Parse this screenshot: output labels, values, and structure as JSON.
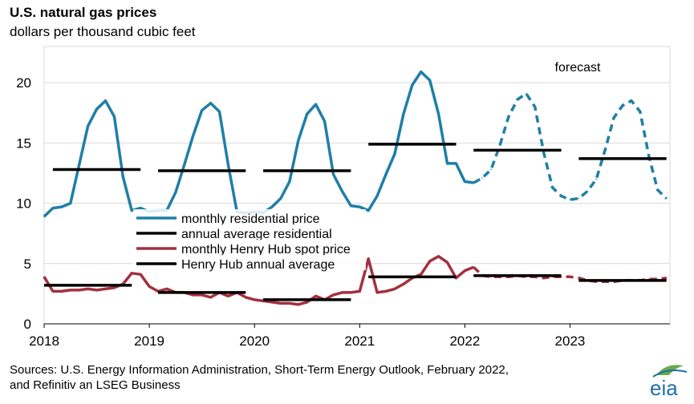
{
  "header": {
    "title": "U.S. natural gas prices",
    "subtitle": "dollars per thousand cubic feet"
  },
  "footer": {
    "source_line1": "Sources: U.S. Energy Information Administration, Short-Term Energy Outlook, February 2022,",
    "source_line2": "and Refinitiv an LSEG Business"
  },
  "logo": {
    "text": "eia",
    "icon": "eia-logo-icon"
  },
  "colors": {
    "residential": "#1f7fa6",
    "henry_hub": "#a3303f",
    "annual_average": "#000000",
    "grid": "#d9d9d9",
    "logo_blue": "#1f6fa8",
    "logo_green": "#6aa84f"
  },
  "chart_data": {
    "type": "line",
    "title": "U.S. natural gas prices",
    "ylabel": "dollars per thousand cubic feet",
    "ylim": [
      0,
      23
    ],
    "yticks": [
      0,
      5,
      10,
      15,
      20
    ],
    "xlim": [
      2018.0,
      2023.95
    ],
    "xticks": [
      {
        "x": 2018,
        "label": "2018"
      },
      {
        "x": 2019,
        "label": "2019"
      },
      {
        "x": 2020,
        "label": "2020"
      },
      {
        "x": 2021,
        "label": "2021"
      },
      {
        "x": 2022,
        "label": "2022"
      },
      {
        "x": 2023,
        "label": "2023"
      }
    ],
    "grid": "horizontal",
    "forecast_start": 2022.083,
    "forecast_label": "forecast",
    "legend_position": "center-left",
    "legend": [
      {
        "label": "monthly residential price",
        "color_key": "residential"
      },
      {
        "label": "annual average residential",
        "color_key": "annual_average"
      },
      {
        "label": "monthly Henry Hub spot price",
        "color_key": "henry_hub"
      },
      {
        "label": "Henry Hub annual average",
        "color_key": "annual_average"
      }
    ],
    "series": [
      {
        "name": "monthly residential price",
        "color_key": "residential",
        "start": 2018.0,
        "step": 0.08333,
        "dashed_from_index": 49,
        "values": [
          8.9,
          9.6,
          9.7,
          10.0,
          13.2,
          16.4,
          17.8,
          18.5,
          17.2,
          12.2,
          9.4,
          9.6,
          9.3,
          9.4,
          9.4,
          10.9,
          13.2,
          15.6,
          17.7,
          18.3,
          17.6,
          13.2,
          9.3,
          9.2,
          9.3,
          9.2,
          9.7,
          10.4,
          11.8,
          15.2,
          17.4,
          18.2,
          16.8,
          12.4,
          11.0,
          9.8,
          9.7,
          9.4,
          10.6,
          12.4,
          14.1,
          17.4,
          19.8,
          20.9,
          20.2,
          17.4,
          13.3,
          13.3,
          11.8,
          11.7,
          12.1,
          12.8,
          14.8,
          17.2,
          18.6,
          19.1,
          18.0,
          14.2,
          11.3,
          10.6,
          10.3,
          10.4,
          11.0,
          12.0,
          14.4,
          17.1,
          18.1,
          18.5,
          17.6,
          13.9,
          11.1,
          10.4
        ]
      },
      {
        "name": "monthly Henry Hub spot price",
        "color_key": "henry_hub",
        "start": 2018.0,
        "step": 0.08333,
        "dashed_from_index": 49,
        "values": [
          3.9,
          2.7,
          2.7,
          2.8,
          2.8,
          2.9,
          2.8,
          2.9,
          3.0,
          3.3,
          4.2,
          4.1,
          3.1,
          2.7,
          2.9,
          2.6,
          2.6,
          2.4,
          2.4,
          2.2,
          2.6,
          2.3,
          2.6,
          2.2,
          2.0,
          1.9,
          1.8,
          1.7,
          1.7,
          1.6,
          1.8,
          2.3,
          2.0,
          2.4,
          2.6,
          2.6,
          2.7,
          5.4,
          2.6,
          2.7,
          2.9,
          3.3,
          3.8,
          4.1,
          5.2,
          5.6,
          5.1,
          3.8,
          4.4,
          4.7,
          4.0,
          3.9,
          3.9,
          3.9,
          4.0,
          3.9,
          3.9,
          3.8,
          3.9,
          3.9,
          3.9,
          3.8,
          3.6,
          3.5,
          3.5,
          3.5,
          3.6,
          3.6,
          3.6,
          3.7,
          3.7,
          3.8
        ]
      },
      {
        "name": "annual average residential",
        "color_key": "annual_average",
        "segments": [
          {
            "x0": 2018.083,
            "x1": 2018.917,
            "y": 12.8
          },
          {
            "x0": 2019.083,
            "x1": 2019.917,
            "y": 12.7
          },
          {
            "x0": 2020.083,
            "x1": 2020.917,
            "y": 12.7
          },
          {
            "x0": 2021.083,
            "x1": 2021.917,
            "y": 14.9
          },
          {
            "x0": 2022.083,
            "x1": 2022.917,
            "y": 14.4
          },
          {
            "x0": 2023.083,
            "x1": 2023.917,
            "y": 13.7
          }
        ]
      },
      {
        "name": "Henry Hub annual average",
        "color_key": "annual_average",
        "segments": [
          {
            "x0": 2018.0,
            "x1": 2018.833,
            "y": 3.2
          },
          {
            "x0": 2019.083,
            "x1": 2019.917,
            "y": 2.6
          },
          {
            "x0": 2020.083,
            "x1": 2020.917,
            "y": 2.0
          },
          {
            "x0": 2021.083,
            "x1": 2021.917,
            "y": 3.9
          },
          {
            "x0": 2022.083,
            "x1": 2022.917,
            "y": 4.0
          },
          {
            "x0": 2023.083,
            "x1": 2023.917,
            "y": 3.6
          }
        ]
      }
    ]
  }
}
